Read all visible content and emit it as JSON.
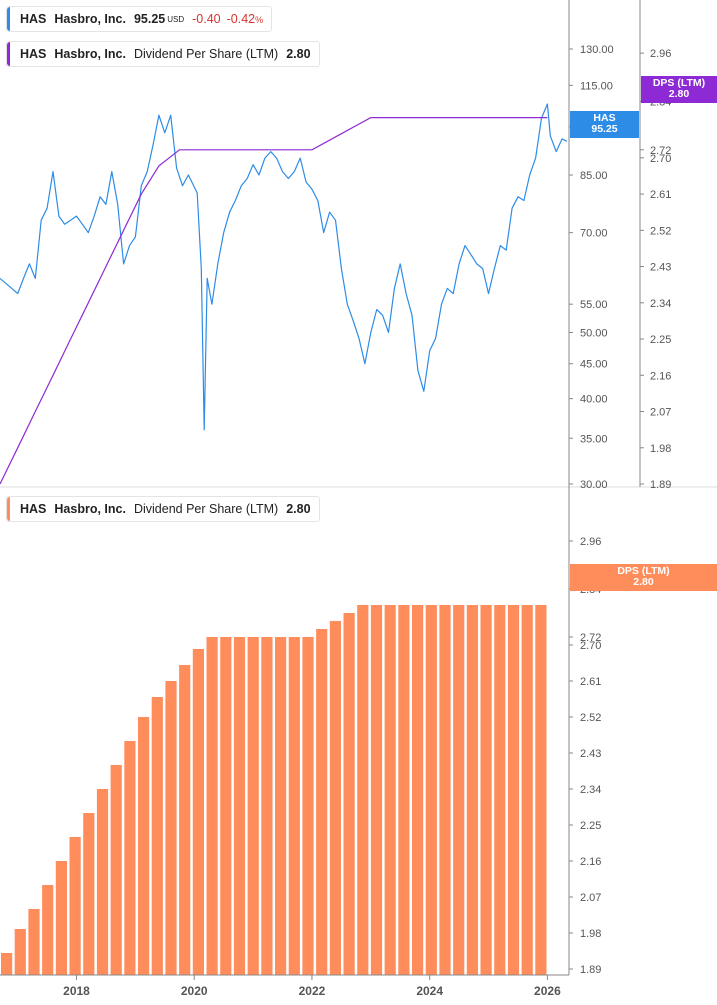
{
  "colors": {
    "price": "#2d8ce6",
    "dps_line": "#8d2ad6",
    "bars": "#ff8d5c",
    "axis": "#888888",
    "text": "#555555",
    "neg": "#d9332e"
  },
  "legend_price": {
    "ticker": "HAS",
    "name": "Hasbro, Inc.",
    "price": "95.25",
    "currency": "USD",
    "change": "-0.40",
    "change_pct": "-0.42",
    "pct_sign": "%"
  },
  "legend_dps_top": {
    "ticker": "HAS",
    "name": "Hasbro, Inc.",
    "metric": "Dividend Per Share (LTM)",
    "value": "2.80"
  },
  "legend_dps_bottom": {
    "ticker": "HAS",
    "name": "Hasbro, Inc.",
    "metric": "Dividend Per Share (LTM)",
    "value": "2.80"
  },
  "tags": {
    "price": {
      "line1": "HAS",
      "line2": "95.25"
    },
    "dps_top": {
      "line1": "DPS (LTM)",
      "line2": "2.80"
    },
    "dps_bottom": {
      "line1": "DPS (LTM)",
      "line2": "2.80"
    }
  },
  "chart_data": [
    {
      "type": "line",
      "scale": "log",
      "x_range": [
        2016.7,
        2026.35
      ],
      "ylim": [
        30,
        140
      ],
      "y_ticks": [
        "130.00",
        "115.00",
        "100.00",
        "85.00",
        "70.00",
        "55.00",
        "50.00",
        "45.00",
        "40.00",
        "35.00",
        "30.00"
      ],
      "y2lim": [
        1.89,
        3.01
      ],
      "y2_ticks": [
        "2.96",
        "2.84",
        "2.72",
        "2.70",
        "2.61",
        "2.52",
        "2.43",
        "2.34",
        "2.25",
        "2.16",
        "2.07",
        "1.98",
        "1.89"
      ],
      "series": [
        {
          "name": "HAS",
          "axis": "left",
          "points": [
            [
              2016.7,
              60
            ],
            [
              2016.8,
              59
            ],
            [
              2016.9,
              58
            ],
            [
              2017.0,
              57
            ],
            [
              2017.1,
              60
            ],
            [
              2017.2,
              63
            ],
            [
              2017.3,
              60
            ],
            [
              2017.4,
              73
            ],
            [
              2017.5,
              76
            ],
            [
              2017.6,
              86
            ],
            [
              2017.7,
              74
            ],
            [
              2017.8,
              72
            ],
            [
              2017.9,
              73
            ],
            [
              2018.0,
              74
            ],
            [
              2018.1,
              72
            ],
            [
              2018.2,
              70
            ],
            [
              2018.3,
              74
            ],
            [
              2018.4,
              79
            ],
            [
              2018.5,
              77
            ],
            [
              2018.6,
              86
            ],
            [
              2018.7,
              77
            ],
            [
              2018.8,
              63
            ],
            [
              2018.9,
              67
            ],
            [
              2019.0,
              69
            ],
            [
              2019.1,
              82
            ],
            [
              2019.2,
              86
            ],
            [
              2019.3,
              94
            ],
            [
              2019.4,
              104
            ],
            [
              2019.5,
              98
            ],
            [
              2019.6,
              104
            ],
            [
              2019.7,
              87
            ],
            [
              2019.8,
              82
            ],
            [
              2019.9,
              85
            ],
            [
              2020.05,
              80
            ],
            [
              2020.12,
              62
            ],
            [
              2020.17,
              36
            ],
            [
              2020.22,
              60
            ],
            [
              2020.3,
              55
            ],
            [
              2020.4,
              63
            ],
            [
              2020.5,
              70
            ],
            [
              2020.6,
              75
            ],
            [
              2020.7,
              78
            ],
            [
              2020.8,
              82
            ],
            [
              2020.9,
              84
            ],
            [
              2021.0,
              88
            ],
            [
              2021.1,
              85
            ],
            [
              2021.2,
              90
            ],
            [
              2021.3,
              92
            ],
            [
              2021.4,
              90
            ],
            [
              2021.5,
              86
            ],
            [
              2021.6,
              84
            ],
            [
              2021.7,
              86
            ],
            [
              2021.8,
              90
            ],
            [
              2021.9,
              83
            ],
            [
              2022.0,
              81
            ],
            [
              2022.1,
              78
            ],
            [
              2022.2,
              70
            ],
            [
              2022.3,
              75
            ],
            [
              2022.4,
              73
            ],
            [
              2022.5,
              62
            ],
            [
              2022.6,
              55
            ],
            [
              2022.7,
              52
            ],
            [
              2022.8,
              49
            ],
            [
              2022.9,
              45
            ],
            [
              2023.0,
              50
            ],
            [
              2023.1,
              54
            ],
            [
              2023.2,
              53
            ],
            [
              2023.3,
              50
            ],
            [
              2023.4,
              58
            ],
            [
              2023.5,
              63
            ],
            [
              2023.6,
              57
            ],
            [
              2023.7,
              53
            ],
            [
              2023.8,
              44
            ],
            [
              2023.9,
              41
            ],
            [
              2024.0,
              47
            ],
            [
              2024.1,
              49
            ],
            [
              2024.2,
              55
            ],
            [
              2024.3,
              58
            ],
            [
              2024.4,
              57
            ],
            [
              2024.5,
              63
            ],
            [
              2024.6,
              67
            ],
            [
              2024.7,
              65
            ],
            [
              2024.8,
              63
            ],
            [
              2024.9,
              62
            ],
            [
              2025.0,
              57
            ],
            [
              2025.1,
              62
            ],
            [
              2025.2,
              67
            ],
            [
              2025.3,
              66
            ],
            [
              2025.4,
              76
            ],
            [
              2025.5,
              79
            ],
            [
              2025.6,
              78
            ],
            [
              2025.7,
              85
            ],
            [
              2025.8,
              90
            ],
            [
              2025.9,
              103
            ],
            [
              2026.0,
              108
            ],
            [
              2026.05,
              97
            ],
            [
              2026.15,
              92
            ],
            [
              2026.25,
              96
            ],
            [
              2026.33,
              95.25
            ]
          ]
        },
        {
          "name": "Dividend Per Share (LTM)",
          "axis": "right",
          "points": [
            [
              2016.7,
              1.89
            ],
            [
              2017.0,
              1.98
            ],
            [
              2017.3,
              2.07
            ],
            [
              2017.6,
              2.16
            ],
            [
              2017.9,
              2.25
            ],
            [
              2018.2,
              2.34
            ],
            [
              2018.5,
              2.43
            ],
            [
              2018.8,
              2.52
            ],
            [
              2019.1,
              2.61
            ],
            [
              2019.4,
              2.68
            ],
            [
              2019.75,
              2.72
            ],
            [
              2020.0,
              2.72
            ],
            [
              2021.0,
              2.72
            ],
            [
              2022.0,
              2.72
            ],
            [
              2022.5,
              2.76
            ],
            [
              2023.0,
              2.8
            ],
            [
              2024.0,
              2.8
            ],
            [
              2025.0,
              2.8
            ],
            [
              2026.0,
              2.8
            ]
          ]
        }
      ]
    },
    {
      "type": "bar",
      "ylim": [
        1.89,
        3.01
      ],
      "y_ticks": [
        "2.96",
        "2.84",
        "2.72",
        "2.70",
        "2.61",
        "2.52",
        "2.43",
        "2.34",
        "2.25",
        "2.16",
        "2.07",
        "1.98",
        "1.89"
      ],
      "x_ticks": [
        "2018",
        "2020",
        "2022",
        "2024",
        "2026"
      ],
      "series": [
        {
          "name": "Dividend Per Share (LTM)",
          "values": [
            1.93,
            1.99,
            2.04,
            2.1,
            2.16,
            2.22,
            2.28,
            2.34,
            2.4,
            2.46,
            2.52,
            2.57,
            2.61,
            2.65,
            2.69,
            2.72,
            2.72,
            2.72,
            2.72,
            2.72,
            2.72,
            2.72,
            2.72,
            2.74,
            2.76,
            2.78,
            2.8,
            2.8,
            2.8,
            2.8,
            2.8,
            2.8,
            2.8,
            2.8,
            2.8,
            2.8,
            2.8,
            2.8,
            2.8,
            2.8
          ]
        }
      ]
    }
  ]
}
